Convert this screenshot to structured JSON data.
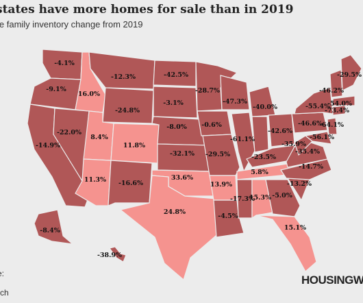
{
  "title": "states have more homes for sale than in 2019",
  "subtitle": "le family inventory change from 2019",
  "footer": {
    "line1": "e:",
    "line2": "rch"
  },
  "brand": "HOUSINGW",
  "colors": {
    "fewer": "#b05757",
    "more": "#f5938f",
    "background": "#ececec"
  },
  "map_data": {
    "metric": "Single-family inventory change from 2019",
    "states": [
      {
        "state": "WA",
        "change": "-4.1%",
        "category": "fewer"
      },
      {
        "state": "OR",
        "change": "-9.1%",
        "category": "fewer"
      },
      {
        "state": "CA",
        "change": "-14.9%",
        "category": "fewer"
      },
      {
        "state": "NV",
        "change": "-22.0%",
        "category": "fewer"
      },
      {
        "state": "ID",
        "change": "16.0%",
        "category": "more"
      },
      {
        "state": "MT",
        "change": "-12.3%",
        "category": "fewer"
      },
      {
        "state": "WY",
        "change": "-24.8%",
        "category": "fewer"
      },
      {
        "state": "UT",
        "change": "8.4%",
        "category": "more"
      },
      {
        "state": "CO",
        "change": "11.8%",
        "category": "more"
      },
      {
        "state": "AZ",
        "change": "11.3%",
        "category": "more"
      },
      {
        "state": "NM",
        "change": "-16.6%",
        "category": "fewer"
      },
      {
        "state": "ND",
        "change": "-42.5%",
        "category": "fewer"
      },
      {
        "state": "SD",
        "change": "-3.1%",
        "category": "fewer"
      },
      {
        "state": "NE",
        "change": "-8.0%",
        "category": "fewer"
      },
      {
        "state": "KS",
        "change": "-32.1%",
        "category": "fewer"
      },
      {
        "state": "OK",
        "change": "33.6%",
        "category": "more"
      },
      {
        "state": "TX",
        "change": "24.8%",
        "category": "more"
      },
      {
        "state": "MN",
        "change": "-28.7%",
        "category": "fewer"
      },
      {
        "state": "IA",
        "change": "-0.6%",
        "category": "fewer"
      },
      {
        "state": "MO",
        "change": "-29.5%",
        "category": "fewer"
      },
      {
        "state": "AR",
        "change": "13.9%",
        "category": "more"
      },
      {
        "state": "LA",
        "change": "-4.5%",
        "category": "fewer"
      },
      {
        "state": "WI",
        "change": "-47.3%",
        "category": "fewer"
      },
      {
        "state": "IL",
        "change": "-61.1%",
        "category": "fewer"
      },
      {
        "state": "MI",
        "change": "-40.0%",
        "category": "fewer"
      },
      {
        "state": "IN",
        "change": "",
        "category": "fewer"
      },
      {
        "state": "OH",
        "change": "-42.6%",
        "category": "fewer"
      },
      {
        "state": "KY",
        "change": "-23.5%",
        "category": "fewer"
      },
      {
        "state": "TN",
        "change": "5.8%",
        "category": "more"
      },
      {
        "state": "MS",
        "change": "-17.3%",
        "category": "fewer"
      },
      {
        "state": "AL",
        "change": "15.3%",
        "category": "more"
      },
      {
        "state": "GA",
        "change": "-5.0%",
        "category": "fewer"
      },
      {
        "state": "FL",
        "change": "15.1%",
        "category": "more"
      },
      {
        "state": "SC",
        "change": "-13.2%",
        "category": "fewer"
      },
      {
        "state": "NC",
        "change": "-14.7%",
        "category": "fewer"
      },
      {
        "state": "VA",
        "change": "-35.4%",
        "category": "fewer"
      },
      {
        "state": "WV",
        "change": "-35.9%",
        "category": "fewer"
      },
      {
        "state": "PA",
        "change": "-46.6%",
        "category": "fewer"
      },
      {
        "state": "NY",
        "change": "-55.4%",
        "category": "fewer"
      },
      {
        "state": "MD",
        "change": "-56.1%",
        "category": "fewer"
      },
      {
        "state": "NJ",
        "change": "-64.1%",
        "category": "fewer"
      },
      {
        "state": "CT",
        "change": "-73.4%",
        "category": "fewer"
      },
      {
        "state": "MA",
        "change": "-54.0%",
        "category": "fewer"
      },
      {
        "state": "NH",
        "change": "-46.2%",
        "category": "fewer"
      },
      {
        "state": "ME",
        "change": "-29.5%",
        "category": "fewer"
      },
      {
        "state": "AK",
        "change": "-8.4%",
        "category": "fewer"
      },
      {
        "state": "HI",
        "change": "-38.9%",
        "category": "fewer"
      }
    ]
  }
}
